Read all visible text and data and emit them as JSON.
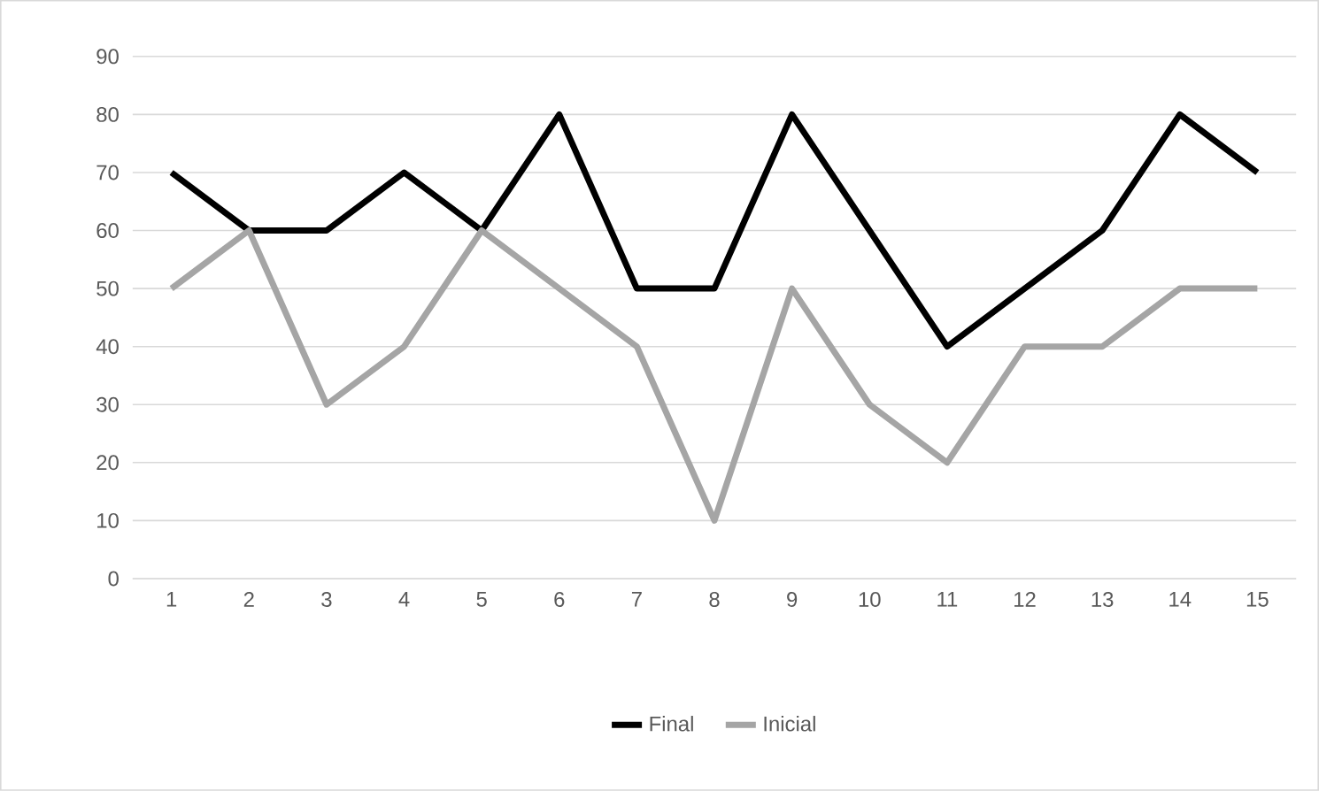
{
  "chart_data": {
    "type": "line",
    "categories": [
      "1",
      "2",
      "3",
      "4",
      "5",
      "6",
      "7",
      "8",
      "9",
      "10",
      "11",
      "12",
      "13",
      "14",
      "15"
    ],
    "series": [
      {
        "name": "Final",
        "color": "#000000",
        "values": [
          70,
          60,
          60,
          70,
          60,
          80,
          50,
          50,
          80,
          60,
          40,
          50,
          60,
          80,
          70
        ]
      },
      {
        "name": "Inicial",
        "color": "#a5a5a5",
        "values": [
          50,
          60,
          30,
          40,
          60,
          50,
          40,
          10,
          50,
          30,
          20,
          40,
          40,
          50,
          50
        ]
      }
    ],
    "ylim": [
      0,
      90
    ],
    "yticks": [
      0,
      10,
      20,
      30,
      40,
      50,
      60,
      70,
      80,
      90
    ],
    "grid": "y",
    "legend": "bottom"
  }
}
